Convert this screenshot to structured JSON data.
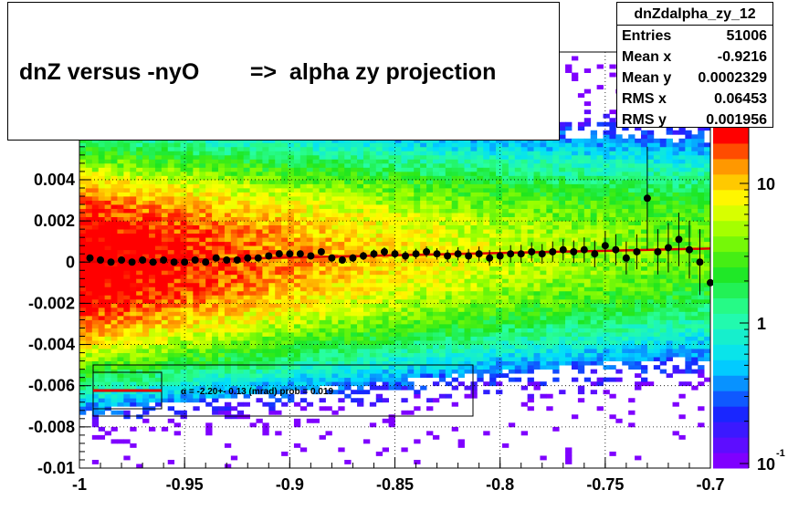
{
  "title": "dnZ versus -nyO        =>  alpha zy projection",
  "stats": {
    "name": "dnZdalpha_zy_12",
    "rows": [
      {
        "label": "Entries",
        "value": "51006"
      },
      {
        "label": "Mean x",
        "value": "-0.9216"
      },
      {
        "label": "Mean y",
        "value": "0.0002329"
      },
      {
        "label": "RMS x",
        "value": "0.06453"
      },
      {
        "label": "RMS y",
        "value": "0.001956"
      }
    ]
  },
  "fit_legend": "α =   -2.20+- 0.13 (mrad) prob = 0.019",
  "colors": {
    "fit_line": "#e00000",
    "markers": "#000000",
    "palette_low": "#7f00ff",
    "palette_high": "#ff0000"
  },
  "chart_data": {
    "type": "heatmap",
    "title": "dnZ versus -nyO        =>  alpha zy projection",
    "xlabel": "",
    "ylabel": "",
    "xlim": [
      -1.0,
      -0.7
    ],
    "ylim": [
      -0.01,
      0.0102
    ],
    "x_ticks": [
      "-1",
      "-0.95",
      "-0.9",
      "-0.85",
      "-0.8",
      "-0.75",
      "-0.7"
    ],
    "y_ticks": [
      "-0.01",
      "-0.008",
      "-0.006",
      "-0.004",
      "-0.002",
      "0",
      "0.002",
      "0.004"
    ],
    "z_scale": "log",
    "z_ticks": [
      "10",
      "1",
      "10^-1"
    ],
    "grid": true,
    "heatmap_model": {
      "peak_density_at_x": -0.99,
      "center_y": 0.0002329,
      "sigma_y": 0.001956,
      "entries": 51006
    },
    "series": [
      {
        "name": "profile",
        "type": "scatter",
        "x": [
          -0.995,
          -0.99,
          -0.985,
          -0.98,
          -0.975,
          -0.97,
          -0.965,
          -0.96,
          -0.955,
          -0.95,
          -0.945,
          -0.94,
          -0.935,
          -0.93,
          -0.925,
          -0.92,
          -0.915,
          -0.91,
          -0.905,
          -0.9,
          -0.895,
          -0.89,
          -0.885,
          -0.88,
          -0.875,
          -0.87,
          -0.865,
          -0.86,
          -0.855,
          -0.85,
          -0.845,
          -0.84,
          -0.835,
          -0.83,
          -0.825,
          -0.82,
          -0.815,
          -0.81,
          -0.805,
          -0.8,
          -0.795,
          -0.79,
          -0.785,
          -0.78,
          -0.775,
          -0.77,
          -0.765,
          -0.76,
          -0.755,
          -0.75,
          -0.745,
          -0.74,
          -0.735,
          -0.73,
          -0.725,
          -0.72,
          -0.715,
          -0.71,
          -0.705,
          -0.7
        ],
        "y": [
          0.0002,
          0.0001,
          0.0,
          0.0001,
          0.0,
          0.0001,
          0.0,
          0.0001,
          0.0,
          0.0,
          0.0001,
          0.0,
          0.0002,
          0.0001,
          0.0001,
          0.0002,
          0.0002,
          0.0003,
          0.0004,
          0.0004,
          0.0004,
          0.0003,
          0.0005,
          0.0002,
          0.0001,
          0.0002,
          0.0003,
          0.0004,
          0.0005,
          0.0004,
          0.0003,
          0.0004,
          0.0005,
          0.0004,
          0.0003,
          0.0004,
          0.0003,
          0.0004,
          0.0002,
          0.0003,
          0.0004,
          0.0004,
          0.0005,
          0.0004,
          0.0005,
          0.0006,
          0.0005,
          0.0006,
          0.0004,
          0.0008,
          0.0006,
          0.0002,
          0.0005,
          0.0031,
          0.0005,
          0.0007,
          0.0011,
          0.0006,
          0.0,
          -0.001
        ],
        "yerr": [
          5e-05,
          5e-05,
          5e-05,
          5e-05,
          5e-05,
          5e-05,
          6e-05,
          6e-05,
          6e-05,
          6e-05,
          7e-05,
          7e-05,
          8e-05,
          8e-05,
          9e-05,
          0.0001,
          0.0001,
          0.0001,
          0.00011,
          0.00012,
          0.00013,
          0.00014,
          0.00015,
          0.00016,
          0.00017,
          0.00018,
          0.0002,
          0.00021,
          0.00022,
          0.00023,
          0.00024,
          0.00025,
          0.00026,
          0.00028,
          0.0003,
          0.00032,
          0.00034,
          0.00036,
          0.00038,
          0.0004,
          0.00042,
          0.00044,
          0.00046,
          0.00048,
          0.0005,
          0.00052,
          0.00055,
          0.0006,
          0.00065,
          0.0007,
          0.00075,
          0.0008,
          0.00085,
          0.0025,
          0.0011,
          0.0012,
          0.0013,
          0.0014,
          0.0016,
          0.0045
        ]
      },
      {
        "name": "fit",
        "type": "line",
        "x": [
          -1.0,
          -0.7
        ],
        "y": [
          0.0,
          0.00066
        ]
      }
    ]
  }
}
